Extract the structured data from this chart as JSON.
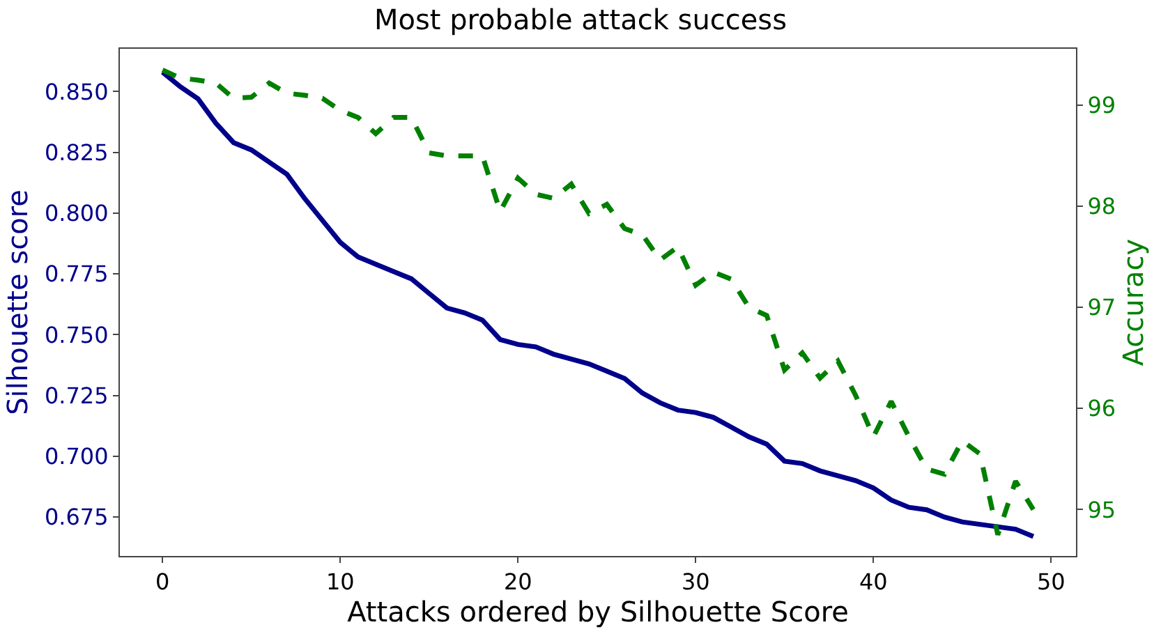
{
  "chart_data": {
    "type": "line",
    "title": "Most probable attack success",
    "xlabel": "Attacks ordered by Silhouette Score",
    "ylabel": "Silhouette score",
    "y2label": "Accuracy",
    "x": [
      0,
      1,
      2,
      3,
      4,
      5,
      6,
      7,
      8,
      9,
      10,
      11,
      12,
      13,
      14,
      15,
      16,
      17,
      18,
      19,
      20,
      21,
      22,
      23,
      24,
      25,
      26,
      27,
      28,
      29,
      30,
      31,
      32,
      33,
      34,
      35,
      36,
      37,
      38,
      39,
      40,
      41,
      42,
      43,
      44,
      45,
      46,
      47,
      48,
      49
    ],
    "xlim": [
      -2.4,
      51.4
    ],
    "xticks": [
      0,
      10,
      20,
      30,
      40,
      50
    ],
    "ylim": [
      0.659,
      0.8676
    ],
    "yticks": [
      {
        "value": 0.675,
        "label": "0.675"
      },
      {
        "value": 0.7,
        "label": "0.700"
      },
      {
        "value": 0.725,
        "label": "0.725"
      },
      {
        "value": 0.75,
        "label": "0.750"
      },
      {
        "value": 0.775,
        "label": "0.775"
      },
      {
        "value": 0.8,
        "label": "0.800"
      },
      {
        "value": 0.825,
        "label": "0.825"
      },
      {
        "value": 0.85,
        "label": "0.850"
      }
    ],
    "y2lim": [
      94.54,
      99.56
    ],
    "y2ticks": [
      95,
      96,
      97,
      98,
      99
    ],
    "series": [
      {
        "color": "#00008b",
        "line_style": "solid",
        "values": [
          0.858,
          0.852,
          0.847,
          0.837,
          0.829,
          0.826,
          0.821,
          0.816,
          0.806,
          0.797,
          0.788,
          0.782,
          0.779,
          0.776,
          0.773,
          0.767,
          0.761,
          0.759,
          0.756,
          0.748,
          0.746,
          0.745,
          0.742,
          0.74,
          0.738,
          0.735,
          0.732,
          0.726,
          0.722,
          0.719,
          0.718,
          0.716,
          0.712,
          0.708,
          0.705,
          0.698,
          0.697,
          0.694,
          0.692,
          0.69,
          0.687,
          0.682,
          0.679,
          0.678,
          0.675,
          0.673,
          0.672,
          0.671,
          0.67,
          0.667
        ]
      },
      {
        "color": "#008000",
        "line_style": "dashed",
        "axis": "y2",
        "values": [
          99.35,
          99.27,
          99.25,
          99.22,
          99.07,
          99.08,
          99.22,
          99.12,
          99.1,
          99.07,
          98.95,
          98.88,
          98.72,
          98.88,
          98.88,
          98.53,
          98.5,
          98.5,
          98.5,
          97.95,
          98.28,
          98.12,
          98.08,
          98.22,
          97.93,
          98.02,
          97.78,
          97.72,
          97.47,
          97.6,
          97.22,
          97.35,
          97.28,
          97.0,
          96.92,
          96.38,
          96.55,
          96.3,
          96.47,
          96.13,
          95.72,
          96.07,
          95.72,
          95.4,
          95.35,
          95.68,
          95.55,
          94.75,
          95.28,
          95.0
        ]
      }
    ],
    "grid": false,
    "marker": "none"
  }
}
